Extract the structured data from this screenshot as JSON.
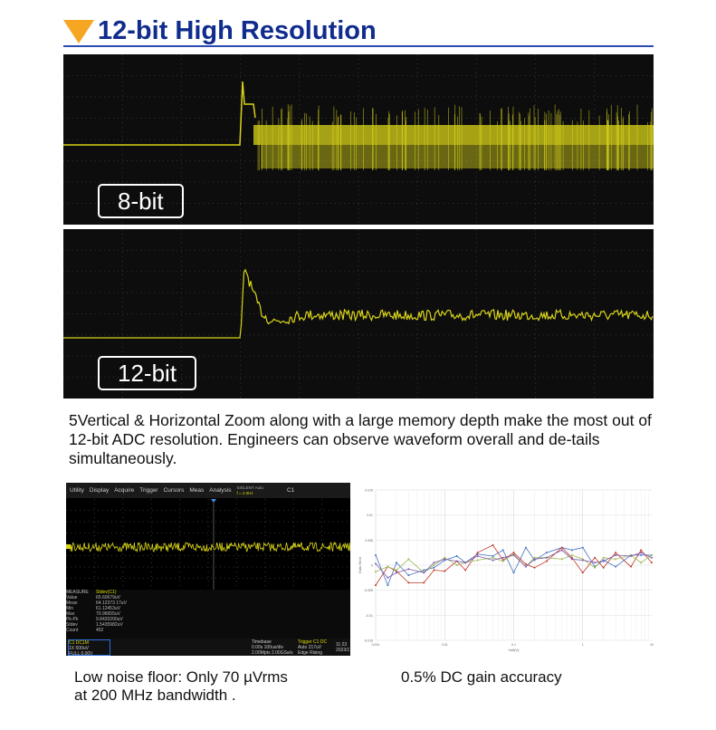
{
  "title": "12-bit High Resolution",
  "panels": [
    {
      "label": "8-bit"
    },
    {
      "label": "12-bit"
    }
  ],
  "description": "5Vertical & Horizontal Zoom along with a large memory depth make the most out of 12-bit ADC  resolution. Engineers can observe waveform overall and de-tails simultaneously.",
  "scope": {
    "menu": [
      "Utility",
      "Display",
      "Acquire",
      "Trigger",
      "Cursors",
      "Meas",
      "Analysis"
    ],
    "trigger_status": "SIGLENT Auto",
    "freq": "f = 2.0Hz",
    "channel": "C1",
    "measure": {
      "header": "MEASURE",
      "param": "Stdev(C1)",
      "rows": [
        [
          "Value",
          "65.60679uV"
        ],
        [
          "Mean",
          "64.12373 17uV"
        ],
        [
          "Min",
          "61.12453uV"
        ],
        [
          "Max",
          "70.96655uV"
        ],
        [
          "Pk-Pk",
          "9.8420200uV"
        ],
        [
          "Stdev",
          "1.5435982uV"
        ],
        [
          "Count",
          "452"
        ]
      ]
    },
    "footer": {
      "ch": "C1",
      "coupling": "DC1M",
      "probe": "1X",
      "scale": "500uV",
      "bw": "FULL",
      "offset": "0.00V",
      "timebase_label": "Timebase",
      "delay": "0.00s",
      "tdiv": "100us/div",
      "mem": "2.00Mpts",
      "srate": "2.00GSa/s",
      "trigger_label": "Trigger",
      "trig_src": "C1 DC",
      "trig_mode": "Auto",
      "trig_level": "217uV",
      "trig_type": "Edge",
      "trig_slope": "Rising",
      "time": "11:23",
      "date": "2023/1"
    }
  },
  "captions": {
    "left": "Low noise floor: Only 70 µVrms\nat 200 MHz bandwidth .",
    "right": "0.5% DC gain accuracy"
  },
  "colors": {
    "title": "#0f2c8e",
    "accent": "#f5a623",
    "trace": "#d9d41a"
  },
  "chart_data": {
    "type": "line",
    "xscale": "log",
    "xlim": [
      0.001,
      10
    ],
    "ylim": [
      -0.015,
      0.015
    ],
    "xlabel": "Volt(V)",
    "ylabel": "Gain Error",
    "grid": true,
    "xticks": [
      "0.001",
      "0.01",
      "0.1",
      "1",
      "10"
    ],
    "yticks": [
      "0.015",
      "0.01",
      "0.005",
      "0",
      "-0.005",
      "-0.01",
      "-0.015"
    ],
    "x": [
      0.001,
      0.0015,
      0.002,
      0.003,
      0.005,
      0.007,
      0.01,
      0.015,
      0.02,
      0.03,
      0.05,
      0.07,
      0.1,
      0.15,
      0.2,
      0.3,
      0.5,
      0.7,
      1,
      1.5,
      2,
      3,
      5,
      7,
      10
    ],
    "series": [
      {
        "color": "#4472c4",
        "values": [
          0.002,
          -0.004,
          0.0005,
          -0.002,
          -0.001,
          -0.0005,
          0.001,
          0.0018,
          0.0005,
          0.0022,
          0.0018,
          0.003,
          -0.0015,
          0.0035,
          0.001,
          0.0025,
          0.0035,
          0.003,
          0.0035,
          -0.0003,
          0.001,
          -0.0003,
          0.002,
          0.002,
          0.002
        ]
      },
      {
        "color": "#c0392b",
        "values": [
          -0.004,
          -0.0003,
          -0.0012,
          -0.0035,
          -0.0035,
          -0.001,
          -0.0012,
          0.0008,
          -0.001,
          0.0025,
          0.004,
          0.001,
          0.0025,
          0.0002,
          -0.0005,
          0.0008,
          0.0035,
          0.0015,
          -0.0015,
          0.0015,
          -0.0005,
          0.0025,
          -0.0003,
          0.003,
          0.0005
        ]
      },
      {
        "color": "#9bbb59",
        "values": [
          -0.0013,
          -0.0003,
          -0.001,
          0.0012,
          -0.0015,
          0,
          0.0015,
          0,
          0.0005,
          0.001,
          0.0015,
          0.0008,
          0.0022,
          -0.0003,
          0.0015,
          0.0015,
          0.0012,
          0.002,
          0.0012,
          -0.0005,
          0.0015,
          0.0012,
          0.002,
          0.0005,
          0.002
        ]
      },
      {
        "color": "#7e57a8",
        "values": [
          0.0003,
          -0.0025,
          -0.0015,
          -0.0008,
          -0.0015,
          0.0005,
          0.0012,
          0.0008,
          0.0005,
          0.0018,
          0.001,
          0.0015,
          0.002,
          -0.0003,
          0.0012,
          0.0015,
          0.003,
          0.0012,
          0.001,
          0.0005,
          0.0008,
          0.002,
          0.0018,
          0.0025,
          0.0015
        ]
      }
    ]
  }
}
